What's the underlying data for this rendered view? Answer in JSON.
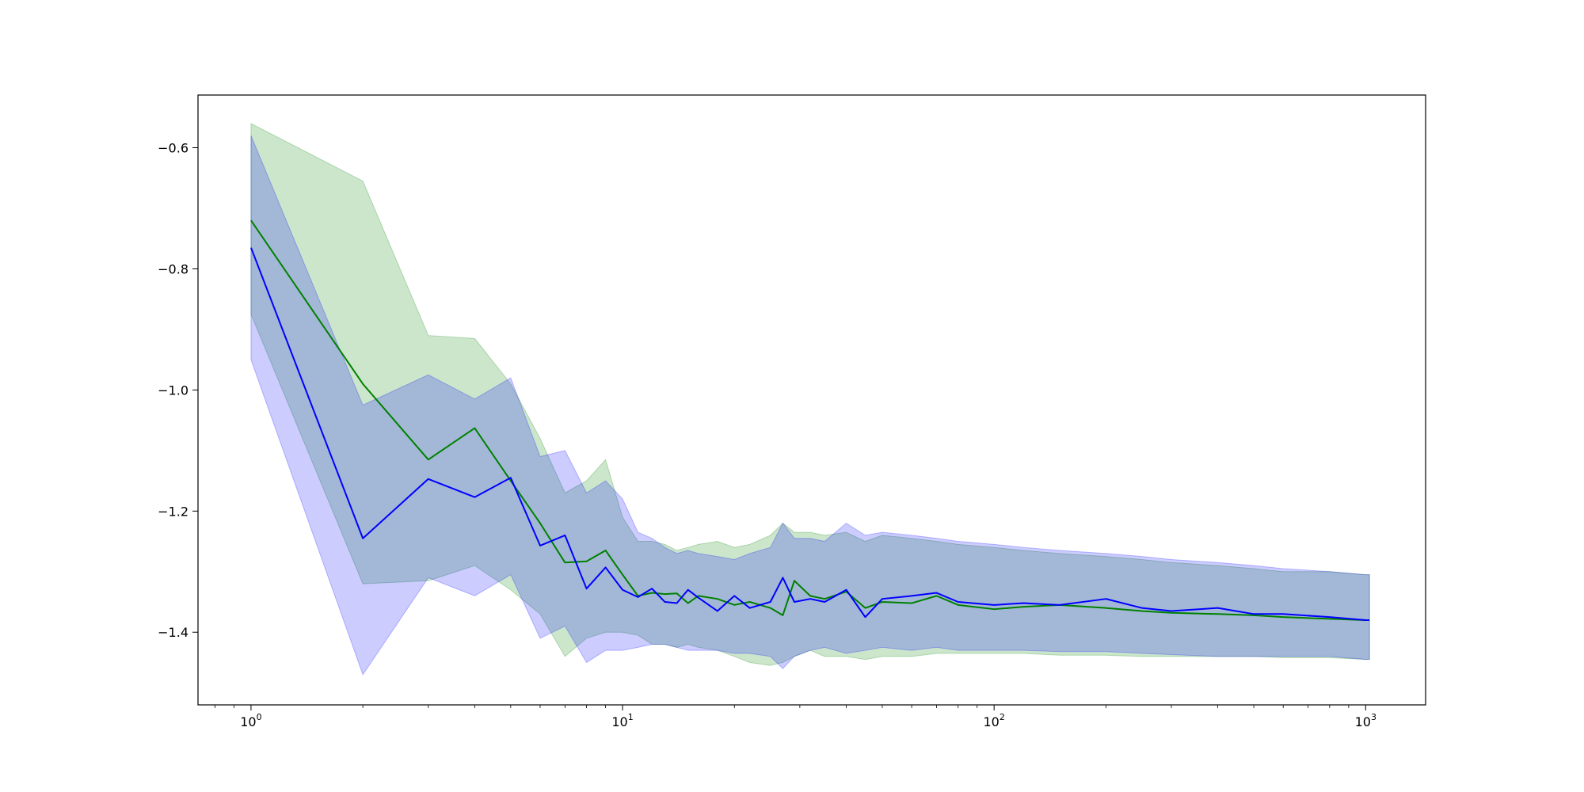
{
  "chart_data": {
    "type": "line",
    "x_scale": "log",
    "xlim": [
      0.72,
      1450
    ],
    "ylim": [
      -1.52,
      -0.513
    ],
    "grid": false,
    "legend": "none",
    "x_ticks": [
      {
        "value": 1,
        "base": "10",
        "exp": "0"
      },
      {
        "value": 10,
        "base": "10",
        "exp": "1"
      },
      {
        "value": 100,
        "base": "10",
        "exp": "2"
      },
      {
        "value": 1000,
        "base": "10",
        "exp": "3"
      }
    ],
    "y_ticks": [
      {
        "value": -1.4,
        "label": "−1.4"
      },
      {
        "value": -1.2,
        "label": "−1.2"
      },
      {
        "value": -1.0,
        "label": "−1.0"
      },
      {
        "value": -0.8,
        "label": "−0.8"
      },
      {
        "value": -0.6,
        "label": "−0.6"
      }
    ],
    "series": [
      {
        "color": "#008000",
        "band_color": "#008000",
        "band_opacity": 0.2,
        "x": [
          1,
          2,
          3,
          4,
          5,
          6,
          7,
          8,
          9,
          10,
          11,
          12,
          13,
          14,
          15,
          16,
          18,
          20,
          22,
          25,
          27,
          29,
          32,
          35,
          40,
          45,
          50,
          60,
          70,
          80,
          100,
          120,
          150,
          200,
          250,
          300,
          400,
          500,
          600,
          800,
          1000,
          1024
        ],
        "mean": [
          -0.72,
          -0.99,
          -1.115,
          -1.063,
          -1.15,
          -1.22,
          -1.285,
          -1.283,
          -1.265,
          -1.305,
          -1.34,
          -1.335,
          -1.337,
          -1.336,
          -1.352,
          -1.34,
          -1.345,
          -1.355,
          -1.35,
          -1.36,
          -1.372,
          -1.315,
          -1.34,
          -1.345,
          -1.333,
          -1.36,
          -1.35,
          -1.352,
          -1.34,
          -1.355,
          -1.362,
          -1.358,
          -1.355,
          -1.36,
          -1.365,
          -1.368,
          -1.37,
          -1.372,
          -1.375,
          -1.378,
          -1.38,
          -1.38
        ],
        "upper": [
          -0.56,
          -0.655,
          -0.91,
          -0.915,
          -0.99,
          -1.08,
          -1.17,
          -1.15,
          -1.115,
          -1.21,
          -1.25,
          -1.25,
          -1.255,
          -1.265,
          -1.26,
          -1.255,
          -1.25,
          -1.26,
          -1.255,
          -1.24,
          -1.22,
          -1.235,
          -1.235,
          -1.24,
          -1.235,
          -1.25,
          -1.24,
          -1.245,
          -1.25,
          -1.255,
          -1.26,
          -1.265,
          -1.27,
          -1.275,
          -1.28,
          -1.285,
          -1.29,
          -1.295,
          -1.3,
          -1.3,
          -1.305,
          -1.305
        ],
        "lower": [
          -0.875,
          -1.32,
          -1.315,
          -1.29,
          -1.33,
          -1.37,
          -1.44,
          -1.41,
          -1.4,
          -1.4,
          -1.405,
          -1.42,
          -1.42,
          -1.425,
          -1.42,
          -1.425,
          -1.43,
          -1.44,
          -1.45,
          -1.455,
          -1.45,
          -1.44,
          -1.43,
          -1.44,
          -1.44,
          -1.445,
          -1.44,
          -1.44,
          -1.435,
          -1.435,
          -1.435,
          -1.435,
          -1.438,
          -1.438,
          -1.44,
          -1.44,
          -1.44,
          -1.44,
          -1.442,
          -1.442,
          -1.445,
          -1.445
        ]
      },
      {
        "color": "#0000ff",
        "band_color": "#0000ff",
        "band_opacity": 0.2,
        "x": [
          1,
          2,
          3,
          4,
          5,
          6,
          7,
          8,
          9,
          10,
          11,
          12,
          13,
          14,
          15,
          16,
          18,
          20,
          22,
          25,
          27,
          29,
          32,
          35,
          40,
          45,
          50,
          60,
          70,
          80,
          100,
          120,
          150,
          200,
          250,
          300,
          400,
          500,
          600,
          800,
          1000,
          1024
        ],
        "mean": [
          -0.765,
          -1.245,
          -1.147,
          -1.177,
          -1.145,
          -1.257,
          -1.24,
          -1.328,
          -1.293,
          -1.33,
          -1.342,
          -1.328,
          -1.35,
          -1.352,
          -1.33,
          -1.343,
          -1.365,
          -1.34,
          -1.36,
          -1.35,
          -1.31,
          -1.35,
          -1.345,
          -1.35,
          -1.33,
          -1.375,
          -1.345,
          -1.34,
          -1.335,
          -1.35,
          -1.355,
          -1.352,
          -1.355,
          -1.345,
          -1.36,
          -1.365,
          -1.36,
          -1.37,
          -1.37,
          -1.375,
          -1.38,
          -1.38
        ],
        "upper": [
          -0.58,
          -1.025,
          -0.975,
          -1.015,
          -0.98,
          -1.11,
          -1.1,
          -1.17,
          -1.15,
          -1.18,
          -1.235,
          -1.245,
          -1.26,
          -1.27,
          -1.265,
          -1.27,
          -1.275,
          -1.28,
          -1.27,
          -1.26,
          -1.22,
          -1.245,
          -1.245,
          -1.25,
          -1.22,
          -1.24,
          -1.235,
          -1.24,
          -1.245,
          -1.25,
          -1.255,
          -1.26,
          -1.265,
          -1.27,
          -1.275,
          -1.28,
          -1.285,
          -1.29,
          -1.295,
          -1.3,
          -1.305,
          -1.305
        ],
        "lower": [
          -0.95,
          -1.47,
          -1.31,
          -1.34,
          -1.305,
          -1.41,
          -1.39,
          -1.45,
          -1.43,
          -1.43,
          -1.425,
          -1.42,
          -1.42,
          -1.425,
          -1.43,
          -1.43,
          -1.43,
          -1.435,
          -1.435,
          -1.44,
          -1.46,
          -1.44,
          -1.43,
          -1.425,
          -1.435,
          -1.43,
          -1.425,
          -1.43,
          -1.425,
          -1.43,
          -1.43,
          -1.43,
          -1.432,
          -1.432,
          -1.435,
          -1.437,
          -1.44,
          -1.44,
          -1.44,
          -1.44,
          -1.445,
          -1.445
        ]
      }
    ]
  }
}
